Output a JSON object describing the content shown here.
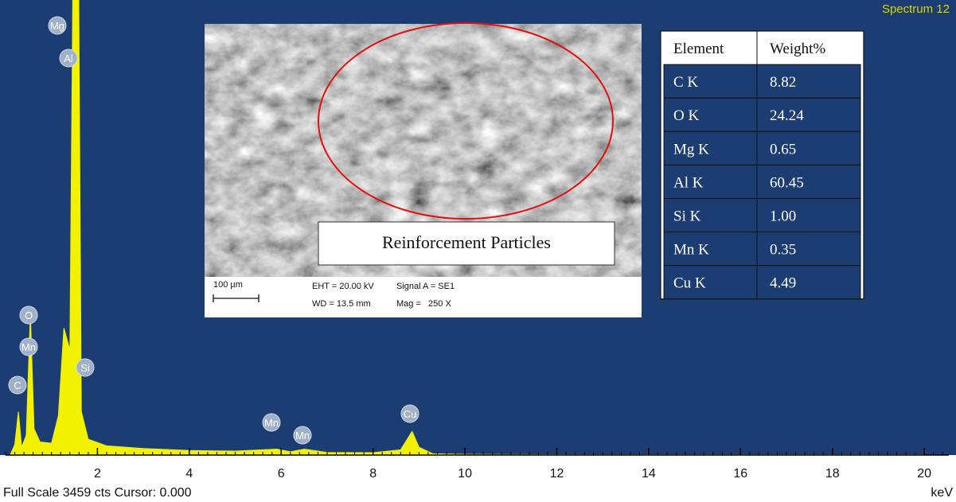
{
  "chart_data": {
    "type": "area",
    "title": "Spectrum 12",
    "x_label": "keV",
    "footer": "Full Scale 3459 cts Cursor: 0.000",
    "x": [
      0.1,
      0.2,
      0.28,
      0.35,
      0.45,
      0.54,
      0.62,
      0.75,
      1.0,
      1.15,
      1.27,
      1.4,
      1.48,
      1.58,
      1.65,
      1.8,
      2.2,
      3,
      4,
      5,
      5.9,
      6.2,
      6.5,
      7,
      8,
      8.6,
      8.85,
      9.0,
      9.3,
      10,
      12,
      15,
      20
    ],
    "values": [
      0,
      80,
      330,
      60,
      150,
      1080,
      200,
      100,
      90,
      300,
      965,
      800,
      4200,
      4200,
      330,
      120,
      70,
      50,
      35,
      30,
      45,
      25,
      45,
      20,
      18,
      40,
      180,
      60,
      10,
      5,
      3,
      2,
      2
    ],
    "color": "#f2f200",
    "xlim": [
      0,
      20.5
    ],
    "ylim": [
      0,
      3459
    ],
    "xticks": [
      2,
      4,
      6,
      8,
      10,
      12,
      14,
      16,
      18,
      20
    ],
    "peak_labels": [
      "Mg",
      "Al",
      "O",
      "Mn",
      "C",
      "Si",
      "Mn",
      "Mn",
      "Cu"
    ],
    "image": {
      "caption": "Reinforcement Particles",
      "scale_bar": "100 µm",
      "eht": "EHT = 20.00 kV",
      "signal": "Signal A = SE1",
      "wd": "WD = 13.5 mm",
      "mag": "Mag =   250 X"
    },
    "table": {
      "header": [
        "Element",
        "Weight%"
      ],
      "rows": [
        [
          "C K",
          "8.82"
        ],
        [
          "O K",
          "24.24"
        ],
        [
          "Mg K",
          "0.65"
        ],
        [
          "Al K",
          "60.45"
        ],
        [
          "Si K",
          "1.00"
        ],
        [
          "Mn K",
          "0.35"
        ],
        [
          "Cu K",
          "4.49"
        ]
      ]
    }
  }
}
